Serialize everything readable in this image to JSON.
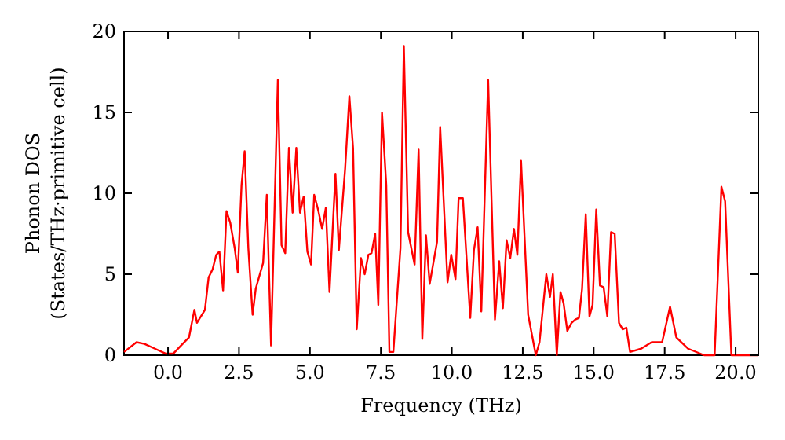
{
  "chart_data": {
    "type": "line",
    "xlabel": "Frequency (THz)",
    "ylabel": "Phonon DOS\n(States/THz·primitive cell)",
    "xlim": [
      -1.55,
      20.8
    ],
    "ylim": [
      0,
      20
    ],
    "xticks": [
      {
        "value": 0,
        "label": "0.0"
      },
      {
        "value": 2.5,
        "label": "2.5"
      },
      {
        "value": 5,
        "label": "5.0"
      },
      {
        "value": 7.5,
        "label": "7.5"
      },
      {
        "value": 10,
        "label": "10.0"
      },
      {
        "value": 12.5,
        "label": "12.5"
      },
      {
        "value": 15,
        "label": "15.0"
      },
      {
        "value": 17.5,
        "label": "17.5"
      },
      {
        "value": 20,
        "label": "20.0"
      }
    ],
    "yticks": [
      0,
      5,
      10,
      15,
      20
    ],
    "grid": false,
    "marker": "none",
    "line_style": "solid",
    "series": [
      {
        "color": "#ff0000",
        "x": [
          -1.55,
          -1.11,
          -0.83,
          -0.46,
          -0.09,
          0.19,
          0.46,
          0.74,
          0.93,
          1.02,
          1.3,
          1.43,
          1.57,
          1.7,
          1.81,
          1.94,
          2.06,
          2.19,
          2.35,
          2.46,
          2.59,
          2.7,
          2.83,
          2.98,
          3.09,
          3.35,
          3.48,
          3.63,
          3.87,
          4.0,
          4.13,
          4.26,
          4.39,
          4.52,
          4.65,
          4.78,
          4.91,
          5.04,
          5.15,
          5.3,
          5.43,
          5.56,
          5.69,
          5.9,
          6.02,
          6.24,
          6.39,
          6.52,
          6.65,
          6.8,
          6.93,
          7.06,
          7.17,
          7.3,
          7.41,
          7.54,
          7.69,
          7.8,
          7.94,
          8.19,
          8.31,
          8.46,
          8.69,
          8.83,
          8.96,
          9.09,
          9.22,
          9.48,
          9.59,
          9.85,
          9.98,
          10.13,
          10.24,
          10.39,
          10.65,
          10.78,
          10.91,
          11.04,
          11.28,
          11.52,
          11.67,
          11.8,
          11.93,
          12.06,
          12.19,
          12.31,
          12.44,
          12.69,
          12.96,
          13.09,
          13.33,
          13.46,
          13.56,
          13.7,
          13.83,
          13.94,
          14.07,
          14.22,
          14.35,
          14.48,
          14.59,
          14.72,
          14.85,
          14.96,
          15.09,
          15.22,
          15.35,
          15.48,
          15.61,
          15.74,
          15.89,
          16.02,
          16.15,
          16.28,
          16.67,
          17.04,
          17.41,
          17.69,
          17.91,
          18.33,
          18.89,
          19.26,
          19.5,
          19.63,
          19.85,
          20.78
        ],
        "values": [
          0.2,
          0.8,
          0.7,
          0.4,
          0.1,
          0.1,
          0.6,
          1.1,
          2.8,
          2.0,
          2.8,
          4.8,
          5.3,
          6.2,
          6.4,
          4.0,
          8.9,
          8.2,
          6.6,
          5.1,
          10.5,
          12.6,
          6.6,
          2.5,
          4.1,
          5.7,
          9.9,
          0.6,
          17.0,
          6.8,
          6.3,
          12.8,
          8.8,
          12.8,
          8.8,
          9.8,
          6.4,
          5.6,
          9.9,
          8.9,
          7.8,
          9.1,
          3.9,
          11.2,
          6.5,
          11.5,
          16.0,
          12.8,
          1.6,
          6.0,
          5.0,
          6.2,
          6.3,
          7.5,
          3.1,
          15.0,
          10.5,
          0.2,
          0.2,
          6.6,
          19.1,
          7.6,
          5.6,
          12.7,
          1.0,
          7.4,
          4.4,
          7.0,
          14.1,
          4.5,
          6.2,
          4.7,
          9.7,
          9.7,
          2.3,
          6.5,
          7.9,
          2.7,
          17.0,
          2.2,
          5.8,
          2.9,
          7.1,
          6.0,
          7.8,
          6.2,
          12.0,
          2.5,
          0,
          0.8,
          5.0,
          3.6,
          5.0,
          0,
          3.9,
          3.2,
          1.5,
          2.0,
          2.2,
          2.3,
          4.1,
          8.7,
          2.4,
          3.1,
          9.0,
          4.3,
          4.2,
          2.4,
          7.6,
          7.5,
          2.0,
          1.6,
          1.7,
          0.2,
          0.4,
          0.8,
          0.8,
          3.0,
          1.1,
          0.4,
          0,
          0,
          10.4,
          9.5,
          0,
          0
        ]
      }
    ]
  }
}
